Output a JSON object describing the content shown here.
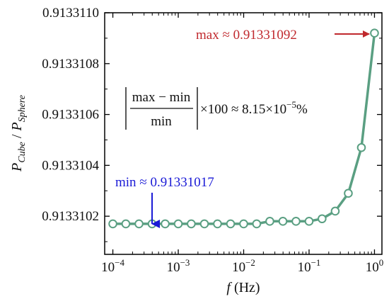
{
  "chart_data": {
    "type": "line",
    "xscale": "log",
    "xlim": [
      7.5e-05,
      1.3
    ],
    "ylim": [
      0.91331005,
      0.913311
    ],
    "xticks": [
      0.0001,
      0.001,
      0.01,
      0.1,
      1
    ],
    "xtick_labels": [
      {
        "base": "10",
        "exp": "-4"
      },
      {
        "base": "10",
        "exp": "-3"
      },
      {
        "base": "10",
        "exp": "-2"
      },
      {
        "base": "10",
        "exp": "-1"
      },
      {
        "base": "10",
        "exp": "0"
      }
    ],
    "yticks": [
      0.9133102,
      0.9133104,
      0.9133106,
      0.9133108,
      0.913311
    ],
    "ytick_labels": [
      "0.9133102",
      "0.9133104",
      "0.9133106",
      "0.9133108",
      "0.9133110"
    ],
    "xlabel": {
      "var": "f",
      "unit": " (Hz)"
    },
    "ylabel": {
      "num": "P",
      "num_sub": "Cube",
      "sep": " / ",
      "den": "P",
      "den_sub": "Sphere"
    },
    "series": [
      {
        "color": "#5a9f82",
        "marker": "open-circle",
        "x": [
          0.0001,
          0.000158,
          0.000251,
          0.000398,
          0.000631,
          0.001,
          0.00158,
          0.00251,
          0.00398,
          0.00631,
          0.01,
          0.0158,
          0.0251,
          0.0398,
          0.0631,
          0.1,
          0.158,
          0.251,
          0.398,
          0.631,
          1.0
        ],
        "y": [
          0.91331017,
          0.91331017,
          0.91331017,
          0.91331017,
          0.91331017,
          0.91331017,
          0.91331017,
          0.91331017,
          0.91331017,
          0.91331017,
          0.91331017,
          0.91331017,
          0.91331018,
          0.91331018,
          0.91331018,
          0.91331018,
          0.91331019,
          0.91331022,
          0.91331029,
          0.91331047,
          0.91331092
        ]
      }
    ],
    "annotations": {
      "max": {
        "text": "max ≈ 0.91331092",
        "color": "#c0282d",
        "x": 1.0,
        "y": 0.91331092
      },
      "min": {
        "text": "min ≈ 0.91331017",
        "color": "#1a1ad6",
        "x": 0.000398,
        "y": 0.91331017
      },
      "formula": {
        "numerator": "max − min",
        "denominator": "min",
        "rhs_pre": "×100 ≈ 8.15×10",
        "rhs_exp": "−5",
        "rhs_post": "%"
      }
    },
    "grid": false,
    "legend": "none"
  }
}
